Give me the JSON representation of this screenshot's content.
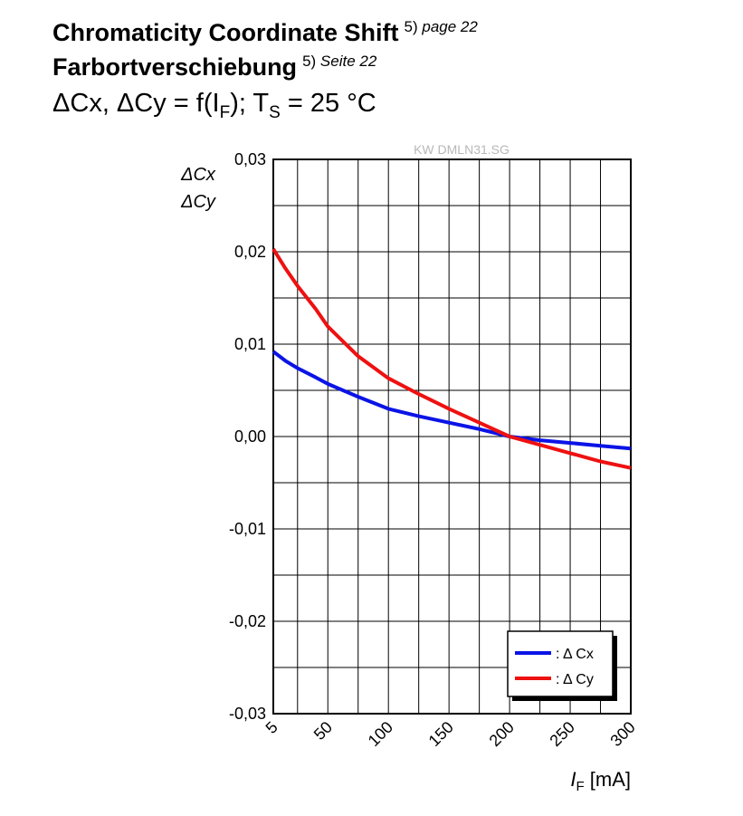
{
  "header": {
    "title_en": "Chromaticity Coordinate Shift",
    "title_en_note_num": "5)",
    "title_en_note_text": "page 22",
    "title_de": "Farbortverschiebung",
    "title_de_note_num": "5)",
    "title_de_note_text": "Seite 22",
    "formula_prefix": "ΔCx, ΔCy = f(I",
    "formula_sub1": "F",
    "formula_mid": "); T",
    "formula_sub2": "S",
    "formula_suffix": " = 25 °C"
  },
  "watermark": "KW DMLN31.SG",
  "colors": {
    "dcx": "#0a14e6",
    "dcy": "#ee1111",
    "grid": "#000000"
  },
  "chart_data": {
    "type": "line",
    "ylabel_lines": [
      "ΔCx",
      "ΔCy"
    ],
    "xlabel_main": "I",
    "xlabel_sub": "F",
    "xlabel_unit": " [mA]",
    "xlim": [
      5,
      300
    ],
    "ylim": [
      -0.03,
      0.03
    ],
    "x_ticks": [
      5,
      50,
      100,
      150,
      200,
      250,
      300
    ],
    "x_tick_labels": [
      "5",
      "50",
      "100",
      "150",
      "200",
      "250",
      "300"
    ],
    "y_ticks": [
      0.03,
      0.02,
      0.01,
      0.0,
      -0.01,
      -0.02,
      -0.03
    ],
    "y_tick_labels": [
      "0,03",
      "0,02",
      "0,01",
      "0,00",
      "-0,01",
      "-0,02",
      "-0,03"
    ],
    "grid": true,
    "legend_position": "bottom-right",
    "series": [
      {
        "name": ": Δ Cx",
        "color_key": "dcx",
        "x": [
          5,
          15,
          25,
          40,
          50,
          75,
          100,
          125,
          150,
          175,
          200,
          225,
          250,
          275,
          300
        ],
        "y": [
          0.0092,
          0.0082,
          0.0074,
          0.0064,
          0.0057,
          0.0043,
          0.003,
          0.0022,
          0.0015,
          0.0008,
          0.0,
          -0.0004,
          -0.0007,
          -0.001,
          -0.0013
        ]
      },
      {
        "name": ": Δ Cy",
        "color_key": "dcy",
        "x": [
          5,
          15,
          25,
          40,
          50,
          75,
          100,
          125,
          150,
          175,
          200,
          225,
          250,
          275,
          300
        ],
        "y": [
          0.0203,
          0.0182,
          0.0163,
          0.0138,
          0.0119,
          0.0087,
          0.0063,
          0.0046,
          0.003,
          0.0015,
          0.0,
          -0.0009,
          -0.0018,
          -0.0027,
          -0.0034
        ]
      }
    ]
  }
}
